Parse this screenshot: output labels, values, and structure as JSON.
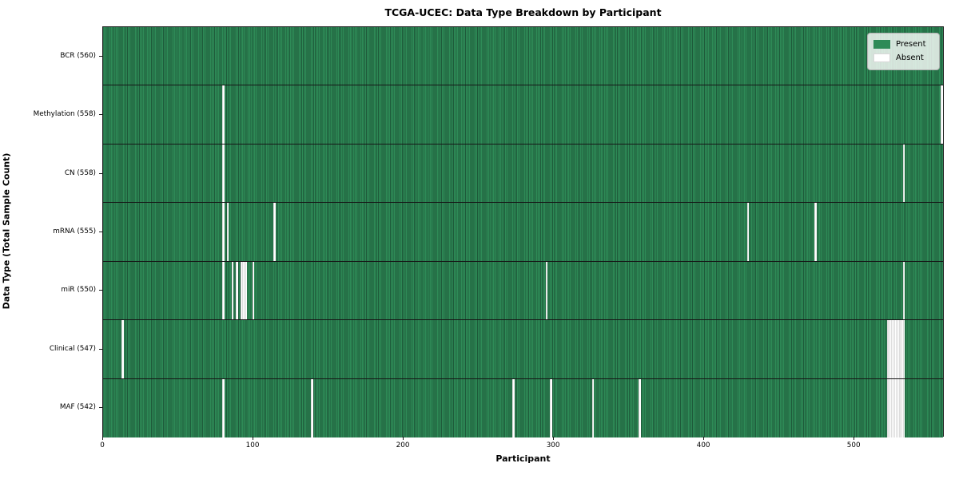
{
  "chart_data": {
    "type": "heatmap",
    "title": "TCGA-UCEC: Data Type Breakdown by Participant",
    "xlabel": "Participant",
    "ylabel": "Data Type (Total Sample Count)",
    "x_range": [
      0,
      560
    ],
    "x_ticks": [
      0,
      100,
      200,
      300,
      400,
      500
    ],
    "n_participants": 560,
    "grid": false,
    "legend_position": "upper right",
    "legend": [
      {
        "label": "Present",
        "color": "#2e8b57"
      },
      {
        "label": "Absent",
        "color": "#ffffff"
      }
    ],
    "colors": {
      "present": "#2e8b57",
      "present_edge": "#1e5a3a",
      "absent": "#ffffff",
      "absent_edge": "#c6c6c6",
      "row_divider": "#161616",
      "spine": "#1a1a1a"
    },
    "rows": [
      {
        "label": "BCR (560)",
        "total": 560,
        "absent_participants": []
      },
      {
        "label": "Methylation (558)",
        "total": 558,
        "absent_participants": [
          80,
          558
        ]
      },
      {
        "label": "CN (558)",
        "total": 558,
        "absent_participants": [
          80,
          533
        ]
      },
      {
        "label": "mRNA (555)",
        "total": 555,
        "absent_participants": [
          80,
          83,
          114,
          429,
          474
        ]
      },
      {
        "label": "miR (550)",
        "total": 550,
        "absent_participants": [
          80,
          86,
          89,
          92,
          93,
          94,
          95,
          100,
          295,
          533
        ]
      },
      {
        "label": "Clinical (547)",
        "total": 547,
        "absent_participants": [
          13,
          522,
          523,
          524,
          525,
          526,
          527,
          528,
          529,
          530,
          531,
          532,
          533
        ]
      },
      {
        "label": "MAF (542)",
        "total": 542,
        "absent_participants": [
          80,
          139,
          273,
          298,
          326,
          357,
          522,
          523,
          524,
          525,
          526,
          527,
          528,
          529,
          530,
          531,
          532,
          533
        ]
      }
    ]
  }
}
